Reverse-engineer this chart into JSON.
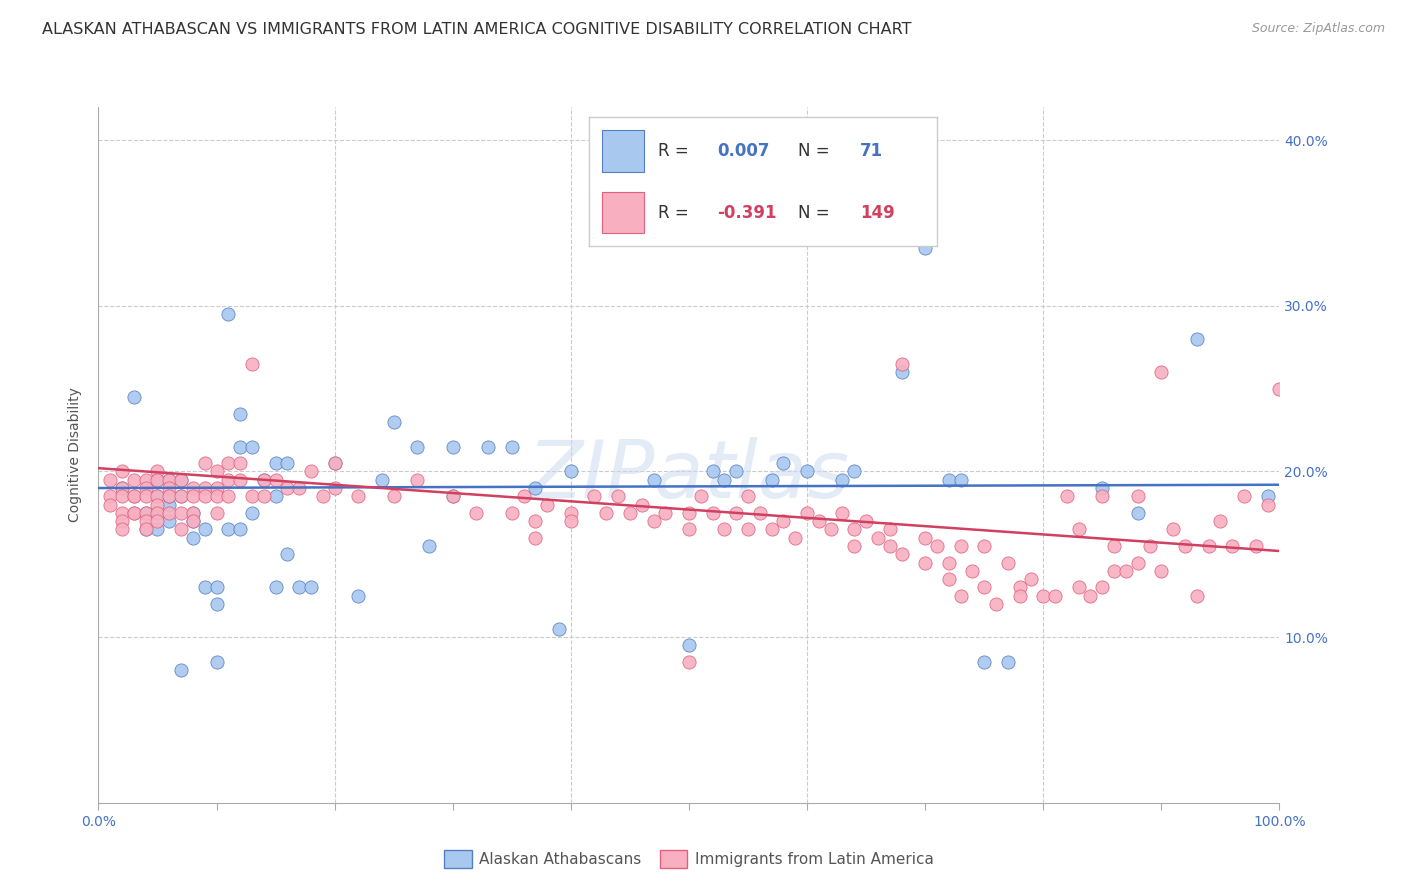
{
  "title": "ALASKAN ATHABASCAN VS IMMIGRANTS FROM LATIN AMERICA COGNITIVE DISABILITY CORRELATION CHART",
  "source": "Source: ZipAtlas.com",
  "ylabel": "Cognitive Disability",
  "xlim": [
    0,
    1.0
  ],
  "ylim": [
    0,
    0.42
  ],
  "x_ticks": [
    0.0,
    0.1,
    0.2,
    0.3,
    0.4,
    0.5,
    0.6,
    0.7,
    0.8,
    0.9,
    1.0
  ],
  "x_tick_labels_show": {
    "0.0": "0.0%",
    "1.0": "100.0%"
  },
  "y_ticks": [
    0.0,
    0.1,
    0.2,
    0.3,
    0.4
  ],
  "y_tick_labels": [
    "",
    "10.0%",
    "20.0%",
    "30.0%",
    "40.0%"
  ],
  "watermark": "ZIPatlas",
  "color_blue": "#a8c8f0",
  "color_pink": "#f8b0c0",
  "color_blue_edge": "#5580c0",
  "color_pink_edge": "#e06080",
  "color_line_blue": "#4472c4",
  "color_line_pink": "#d04060",
  "scatter_blue": [
    [
      0.02,
      0.19
    ],
    [
      0.03,
      0.245
    ],
    [
      0.04,
      0.175
    ],
    [
      0.04,
      0.165
    ],
    [
      0.05,
      0.175
    ],
    [
      0.05,
      0.195
    ],
    [
      0.05,
      0.185
    ],
    [
      0.05,
      0.165
    ],
    [
      0.06,
      0.17
    ],
    [
      0.06,
      0.195
    ],
    [
      0.06,
      0.18
    ],
    [
      0.06,
      0.185
    ],
    [
      0.07,
      0.195
    ],
    [
      0.07,
      0.185
    ],
    [
      0.07,
      0.08
    ],
    [
      0.08,
      0.175
    ],
    [
      0.08,
      0.16
    ],
    [
      0.08,
      0.17
    ],
    [
      0.09,
      0.165
    ],
    [
      0.09,
      0.13
    ],
    [
      0.1,
      0.085
    ],
    [
      0.1,
      0.12
    ],
    [
      0.1,
      0.13
    ],
    [
      0.11,
      0.295
    ],
    [
      0.11,
      0.165
    ],
    [
      0.12,
      0.235
    ],
    [
      0.12,
      0.165
    ],
    [
      0.12,
      0.215
    ],
    [
      0.13,
      0.215
    ],
    [
      0.13,
      0.175
    ],
    [
      0.14,
      0.195
    ],
    [
      0.15,
      0.185
    ],
    [
      0.15,
      0.205
    ],
    [
      0.15,
      0.13
    ],
    [
      0.16,
      0.15
    ],
    [
      0.16,
      0.205
    ],
    [
      0.17,
      0.13
    ],
    [
      0.18,
      0.13
    ],
    [
      0.2,
      0.205
    ],
    [
      0.22,
      0.125
    ],
    [
      0.24,
      0.195
    ],
    [
      0.25,
      0.23
    ],
    [
      0.27,
      0.215
    ],
    [
      0.28,
      0.155
    ],
    [
      0.3,
      0.215
    ],
    [
      0.3,
      0.185
    ],
    [
      0.33,
      0.215
    ],
    [
      0.35,
      0.215
    ],
    [
      0.37,
      0.19
    ],
    [
      0.39,
      0.105
    ],
    [
      0.4,
      0.2
    ],
    [
      0.47,
      0.195
    ],
    [
      0.5,
      0.095
    ],
    [
      0.52,
      0.2
    ],
    [
      0.53,
      0.195
    ],
    [
      0.54,
      0.2
    ],
    [
      0.57,
      0.195
    ],
    [
      0.58,
      0.205
    ],
    [
      0.6,
      0.2
    ],
    [
      0.63,
      0.195
    ],
    [
      0.64,
      0.2
    ],
    [
      0.68,
      0.26
    ],
    [
      0.7,
      0.335
    ],
    [
      0.72,
      0.195
    ],
    [
      0.73,
      0.195
    ],
    [
      0.75,
      0.085
    ],
    [
      0.77,
      0.085
    ],
    [
      0.85,
      0.19
    ],
    [
      0.88,
      0.175
    ],
    [
      0.93,
      0.28
    ],
    [
      0.99,
      0.185
    ]
  ],
  "scatter_pink": [
    [
      0.01,
      0.195
    ],
    [
      0.01,
      0.185
    ],
    [
      0.01,
      0.18
    ],
    [
      0.02,
      0.2
    ],
    [
      0.02,
      0.19
    ],
    [
      0.02,
      0.185
    ],
    [
      0.02,
      0.175
    ],
    [
      0.02,
      0.17
    ],
    [
      0.02,
      0.165
    ],
    [
      0.03,
      0.195
    ],
    [
      0.03,
      0.185
    ],
    [
      0.03,
      0.185
    ],
    [
      0.03,
      0.175
    ],
    [
      0.03,
      0.175
    ],
    [
      0.04,
      0.195
    ],
    [
      0.04,
      0.19
    ],
    [
      0.04,
      0.185
    ],
    [
      0.04,
      0.175
    ],
    [
      0.04,
      0.17
    ],
    [
      0.04,
      0.165
    ],
    [
      0.05,
      0.2
    ],
    [
      0.05,
      0.195
    ],
    [
      0.05,
      0.185
    ],
    [
      0.05,
      0.18
    ],
    [
      0.05,
      0.175
    ],
    [
      0.05,
      0.17
    ],
    [
      0.06,
      0.195
    ],
    [
      0.06,
      0.19
    ],
    [
      0.06,
      0.185
    ],
    [
      0.06,
      0.175
    ],
    [
      0.07,
      0.195
    ],
    [
      0.07,
      0.185
    ],
    [
      0.07,
      0.175
    ],
    [
      0.07,
      0.165
    ],
    [
      0.08,
      0.19
    ],
    [
      0.08,
      0.185
    ],
    [
      0.08,
      0.175
    ],
    [
      0.08,
      0.17
    ],
    [
      0.09,
      0.205
    ],
    [
      0.09,
      0.19
    ],
    [
      0.09,
      0.185
    ],
    [
      0.1,
      0.2
    ],
    [
      0.1,
      0.19
    ],
    [
      0.1,
      0.185
    ],
    [
      0.1,
      0.175
    ],
    [
      0.11,
      0.205
    ],
    [
      0.11,
      0.195
    ],
    [
      0.11,
      0.185
    ],
    [
      0.12,
      0.205
    ],
    [
      0.12,
      0.195
    ],
    [
      0.13,
      0.265
    ],
    [
      0.13,
      0.185
    ],
    [
      0.14,
      0.195
    ],
    [
      0.14,
      0.185
    ],
    [
      0.15,
      0.195
    ],
    [
      0.16,
      0.19
    ],
    [
      0.17,
      0.19
    ],
    [
      0.18,
      0.2
    ],
    [
      0.19,
      0.185
    ],
    [
      0.2,
      0.205
    ],
    [
      0.2,
      0.19
    ],
    [
      0.22,
      0.185
    ],
    [
      0.25,
      0.185
    ],
    [
      0.27,
      0.195
    ],
    [
      0.3,
      0.185
    ],
    [
      0.32,
      0.175
    ],
    [
      0.35,
      0.175
    ],
    [
      0.36,
      0.185
    ],
    [
      0.37,
      0.17
    ],
    [
      0.37,
      0.16
    ],
    [
      0.38,
      0.18
    ],
    [
      0.4,
      0.175
    ],
    [
      0.4,
      0.17
    ],
    [
      0.42,
      0.185
    ],
    [
      0.43,
      0.175
    ],
    [
      0.44,
      0.185
    ],
    [
      0.45,
      0.175
    ],
    [
      0.46,
      0.18
    ],
    [
      0.47,
      0.17
    ],
    [
      0.48,
      0.175
    ],
    [
      0.5,
      0.085
    ],
    [
      0.5,
      0.175
    ],
    [
      0.5,
      0.165
    ],
    [
      0.51,
      0.185
    ],
    [
      0.52,
      0.175
    ],
    [
      0.53,
      0.165
    ],
    [
      0.54,
      0.175
    ],
    [
      0.55,
      0.185
    ],
    [
      0.55,
      0.165
    ],
    [
      0.56,
      0.175
    ],
    [
      0.57,
      0.165
    ],
    [
      0.58,
      0.17
    ],
    [
      0.59,
      0.16
    ],
    [
      0.6,
      0.175
    ],
    [
      0.61,
      0.17
    ],
    [
      0.62,
      0.165
    ],
    [
      0.63,
      0.175
    ],
    [
      0.64,
      0.165
    ],
    [
      0.64,
      0.155
    ],
    [
      0.65,
      0.17
    ],
    [
      0.66,
      0.16
    ],
    [
      0.67,
      0.165
    ],
    [
      0.67,
      0.155
    ],
    [
      0.68,
      0.265
    ],
    [
      0.68,
      0.15
    ],
    [
      0.7,
      0.16
    ],
    [
      0.7,
      0.145
    ],
    [
      0.71,
      0.155
    ],
    [
      0.72,
      0.145
    ],
    [
      0.72,
      0.135
    ],
    [
      0.73,
      0.155
    ],
    [
      0.73,
      0.125
    ],
    [
      0.74,
      0.14
    ],
    [
      0.75,
      0.13
    ],
    [
      0.75,
      0.155
    ],
    [
      0.76,
      0.12
    ],
    [
      0.77,
      0.145
    ],
    [
      0.78,
      0.13
    ],
    [
      0.78,
      0.125
    ],
    [
      0.79,
      0.135
    ],
    [
      0.8,
      0.125
    ],
    [
      0.81,
      0.125
    ],
    [
      0.82,
      0.185
    ],
    [
      0.83,
      0.165
    ],
    [
      0.83,
      0.13
    ],
    [
      0.84,
      0.125
    ],
    [
      0.85,
      0.185
    ],
    [
      0.85,
      0.13
    ],
    [
      0.86,
      0.155
    ],
    [
      0.86,
      0.14
    ],
    [
      0.87,
      0.14
    ],
    [
      0.88,
      0.185
    ],
    [
      0.88,
      0.145
    ],
    [
      0.89,
      0.155
    ],
    [
      0.9,
      0.14
    ],
    [
      0.9,
      0.26
    ],
    [
      0.91,
      0.165
    ],
    [
      0.92,
      0.155
    ],
    [
      0.93,
      0.125
    ],
    [
      0.94,
      0.155
    ],
    [
      0.95,
      0.17
    ],
    [
      0.96,
      0.155
    ],
    [
      0.97,
      0.185
    ],
    [
      0.98,
      0.155
    ],
    [
      0.99,
      0.18
    ],
    [
      1.0,
      0.25
    ]
  ],
  "trend_blue_y0": 0.19,
  "trend_blue_y1": 0.192,
  "trend_pink_y0": 0.202,
  "trend_pink_y1": 0.152,
  "background_color": "#ffffff",
  "grid_color": "#cccccc",
  "tick_color": "#4472c4",
  "title_fontsize": 11.5,
  "source_fontsize": 9,
  "label_fontsize": 10,
  "tick_fontsize": 10,
  "legend_fontsize": 12
}
